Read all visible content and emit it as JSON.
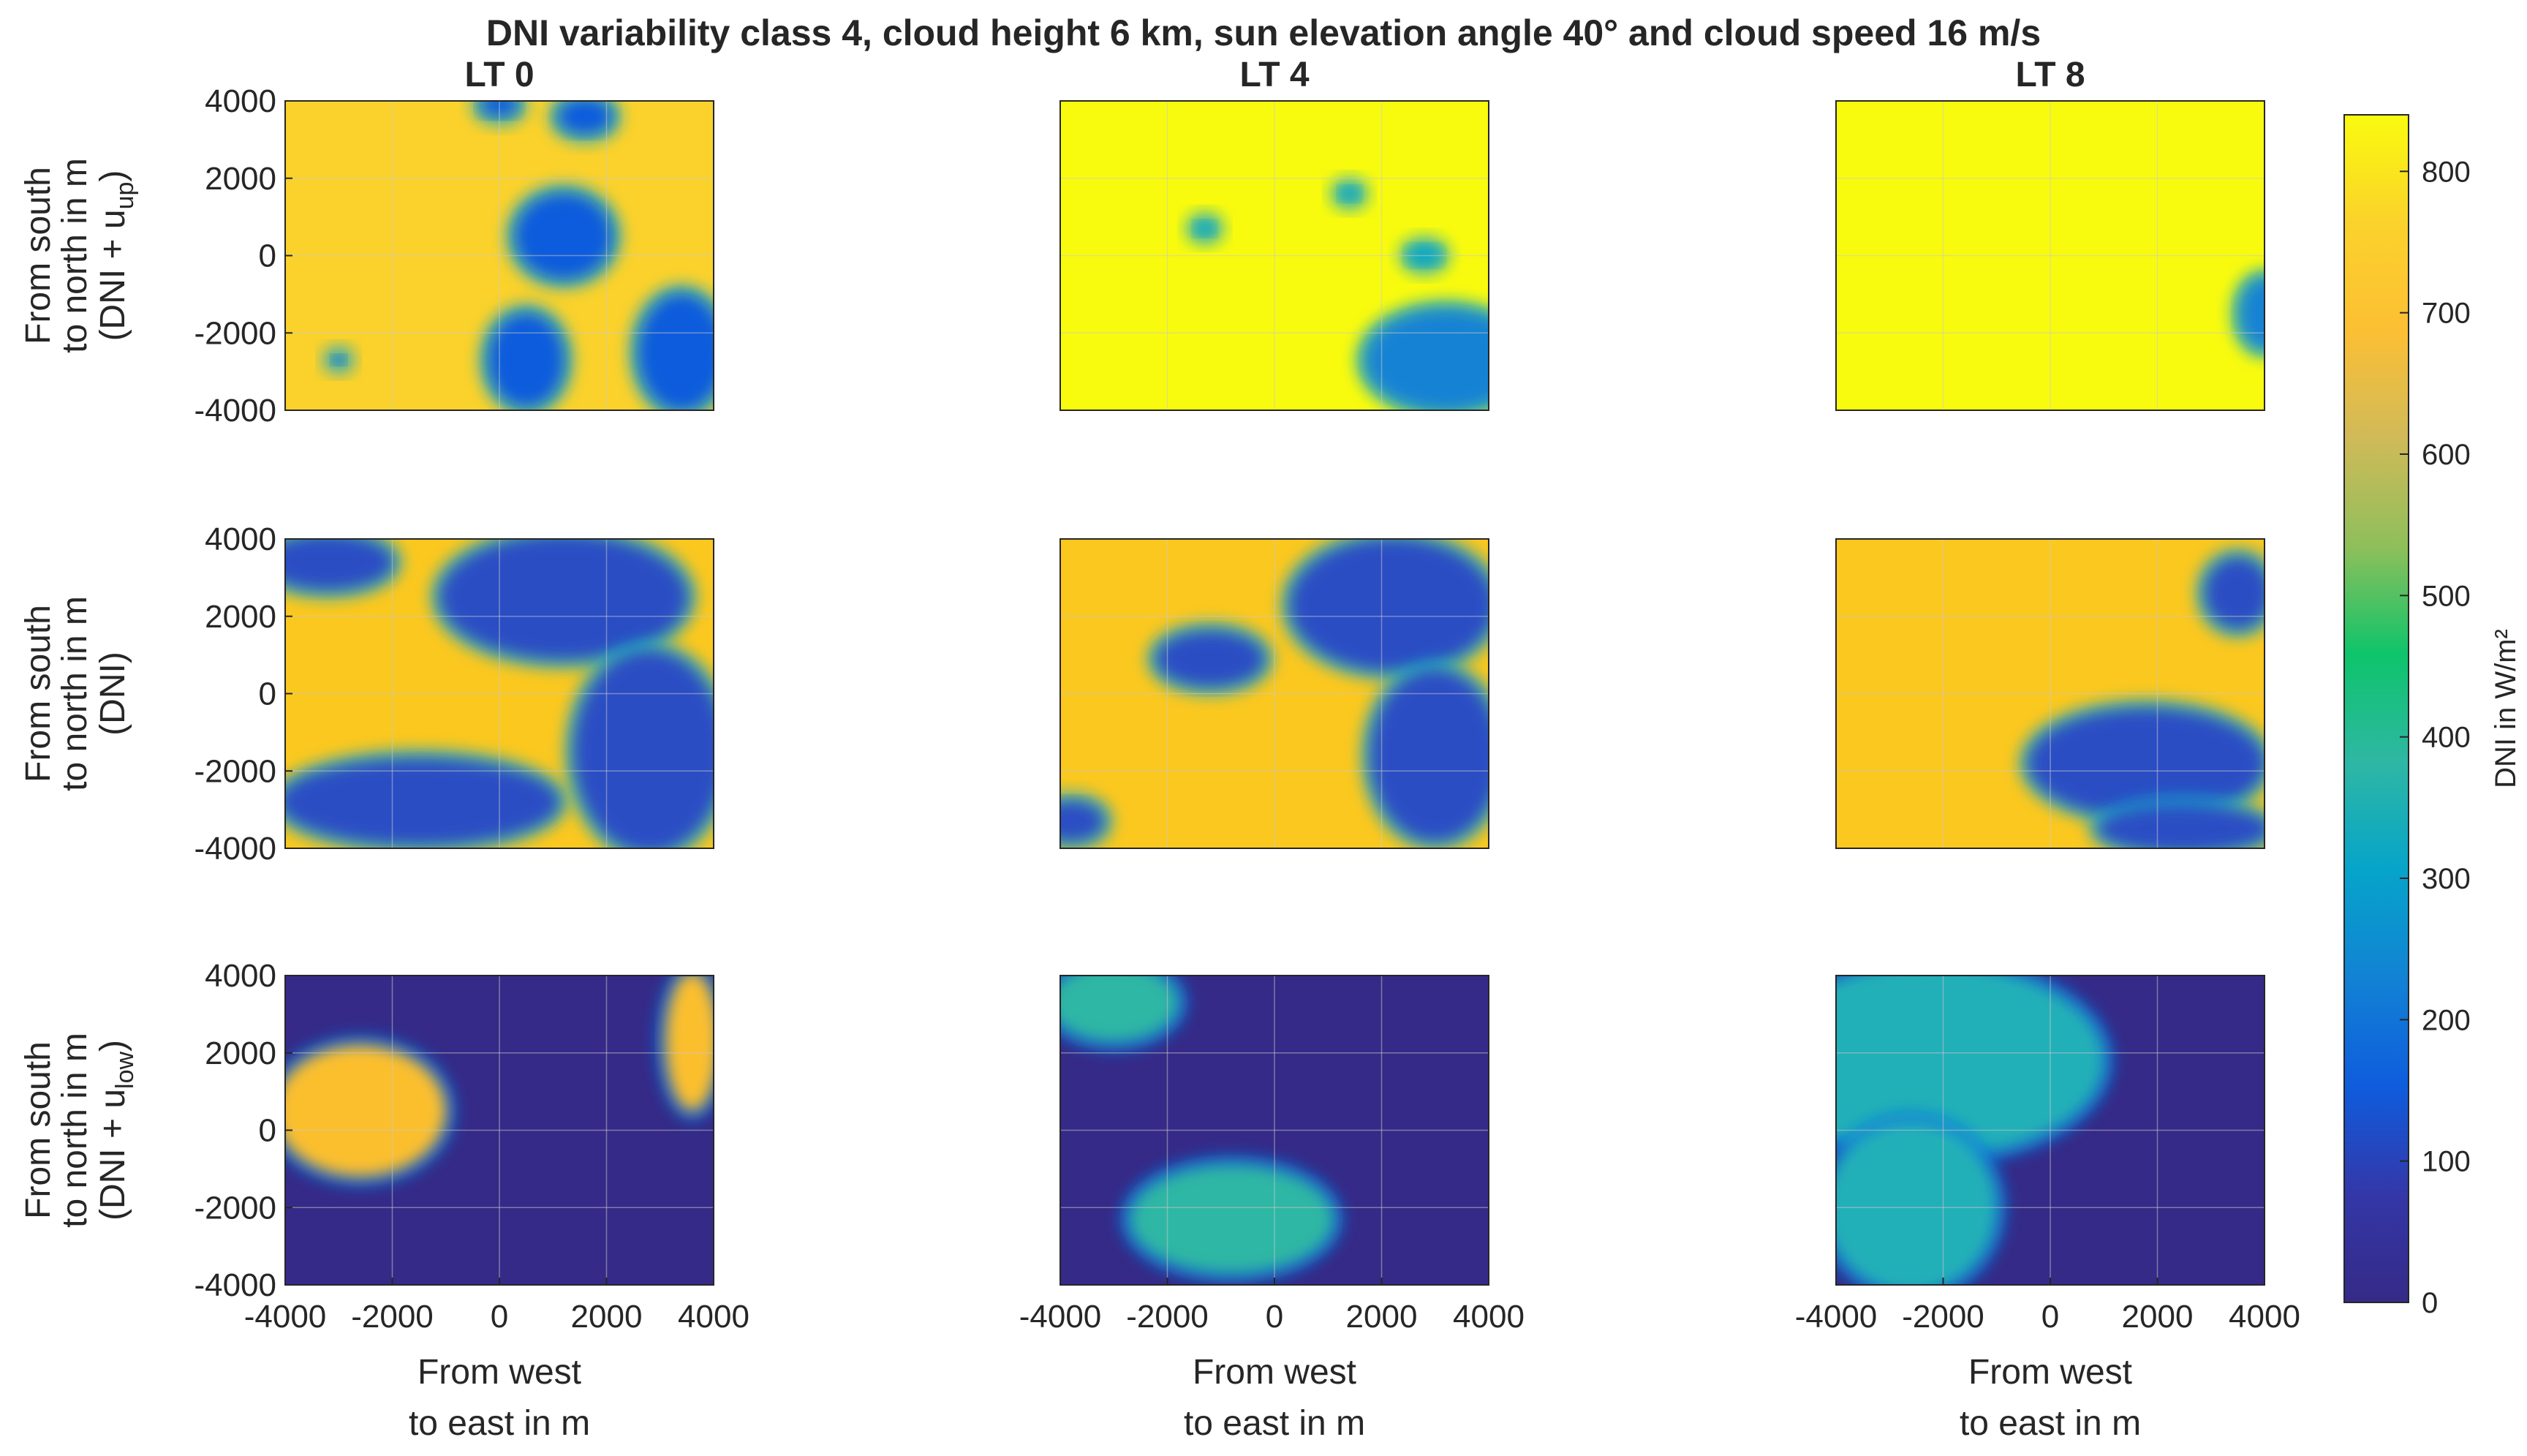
{
  "figure_title": "DNI variability class 4, cloud height 6 km, sun elevation angle 40° and cloud speed 16 m/s",
  "colors": {
    "yellow": "#f7f60f",
    "orange": "#fbc81f",
    "blue": "#2b4dc4",
    "dark_blue": "#352a87",
    "teal": "#17b6a4",
    "bright_blue": "#0f5cdd",
    "axis": "#262626",
    "grid": "#c9c9c9"
  },
  "colorbar_stops": [
    "#352a87",
    "#3437a8",
    "#0f5cdd",
    "#1282d4",
    "#06a4ca",
    "#2eb7a4",
    "#0ec46b",
    "#8ebf5a",
    "#d0ba59",
    "#fcbf34",
    "#fbd22b",
    "#f9fb0e"
  ],
  "chart_data": {
    "type": "heatmap",
    "grid_rows": 3,
    "grid_cols": 3,
    "column_titles": [
      "LT 0",
      "LT 4",
      "LT 8"
    ],
    "row_ylabels": [
      [
        "From south",
        "to north in m",
        "(DNI + u",
        "up",
        ")"
      ],
      [
        "From south",
        "to north in m",
        "(DNI)",
        "",
        ""
      ],
      [
        "From south",
        "to north in m",
        "(DNI + u",
        "low",
        ")"
      ]
    ],
    "xlabel": [
      "From west",
      "to east in m"
    ],
    "x_ticks": [
      "-4000",
      "-2000",
      "0",
      "2000",
      "4000"
    ],
    "y_ticks": [
      "4000",
      "2000",
      "0",
      "-2000",
      "-4000"
    ],
    "xlim": [
      -4000,
      4000
    ],
    "ylim": [
      -4000,
      4000
    ],
    "colorbar": {
      "label": "DNI in W/m²",
      "min": 0,
      "max": 840,
      "ticks": [
        "800",
        "700",
        "600",
        "500",
        "400",
        "300",
        "200",
        "100",
        "0"
      ]
    },
    "panels": [
      {
        "row": 0,
        "col": 0,
        "base": "#fbd22b",
        "blobs": [
          {
            "x": 0,
            "y": 3900,
            "rx": 350,
            "ry": 300,
            "fill": "#0f5cdd"
          },
          {
            "x": 1600,
            "y": 3600,
            "rx": 500,
            "ry": 450,
            "fill": "#0f5cdd"
          },
          {
            "x": 1200,
            "y": 500,
            "rx": 900,
            "ry": 1100,
            "fill": "#0f5cdd"
          },
          {
            "x": 500,
            "y": -2700,
            "rx": 700,
            "ry": 1200,
            "fill": "#0f5cdd"
          },
          {
            "x": 3400,
            "y": -2500,
            "rx": 800,
            "ry": 1500,
            "fill": "#0f5cdd"
          },
          {
            "x": -3000,
            "y": -2700,
            "rx": 120,
            "ry": 120,
            "fill": "#0f5cdd"
          }
        ]
      },
      {
        "row": 0,
        "col": 1,
        "base": "#f9fb0e",
        "blobs": [
          {
            "x": -1300,
            "y": 700,
            "rx": 180,
            "ry": 180,
            "fill": "#06a4ca"
          },
          {
            "x": 1400,
            "y": 1600,
            "rx": 180,
            "ry": 180,
            "fill": "#06a4ca"
          },
          {
            "x": 2800,
            "y": 0,
            "rx": 300,
            "ry": 250,
            "fill": "#06a4ca"
          },
          {
            "x": 3200,
            "y": -2700,
            "rx": 1500,
            "ry": 1300,
            "fill": "#1282d4"
          }
        ]
      },
      {
        "row": 0,
        "col": 2,
        "base": "#f9fb0e",
        "blobs": [
          {
            "x": 4000,
            "y": -1500,
            "rx": 450,
            "ry": 900,
            "fill": "#1282d4"
          }
        ]
      },
      {
        "row": 1,
        "col": 0,
        "base": "#fbc81f",
        "blobs": [
          {
            "x": -3200,
            "y": 3400,
            "rx": 1200,
            "ry": 700,
            "fill": "#2b4dc4"
          },
          {
            "x": 1200,
            "y": 2500,
            "rx": 2300,
            "ry": 1600,
            "fill": "#2b4dc4"
          },
          {
            "x": 2800,
            "y": -1500,
            "rx": 1400,
            "ry": 2600,
            "fill": "#2b4dc4"
          },
          {
            "x": -1500,
            "y": -2800,
            "rx": 2600,
            "ry": 1100,
            "fill": "#2b4dc4"
          }
        ]
      },
      {
        "row": 1,
        "col": 1,
        "base": "#fbc81f",
        "blobs": [
          {
            "x": 2200,
            "y": 2300,
            "rx": 1900,
            "ry": 1700,
            "fill": "#2b4dc4"
          },
          {
            "x": 3000,
            "y": -1600,
            "rx": 1200,
            "ry": 2200,
            "fill": "#2b4dc4"
          },
          {
            "x": -1200,
            "y": 900,
            "rx": 1000,
            "ry": 700,
            "fill": "#2b4dc4"
          },
          {
            "x": -3800,
            "y": -3300,
            "rx": 600,
            "ry": 500,
            "fill": "#2b4dc4"
          }
        ]
      },
      {
        "row": 1,
        "col": 2,
        "base": "#fbc81f",
        "blobs": [
          {
            "x": 1800,
            "y": -1800,
            "rx": 2200,
            "ry": 1400,
            "fill": "#2b4dc4"
          },
          {
            "x": 3500,
            "y": 2600,
            "rx": 600,
            "ry": 900,
            "fill": "#2b4dc4"
          },
          {
            "x": 2500,
            "y": -3500,
            "rx": 1600,
            "ry": 600,
            "fill": "#2b4dc4"
          }
        ]
      },
      {
        "row": 2,
        "col": 0,
        "base": "#352a87",
        "blobs": [
          {
            "x": -2600,
            "y": 500,
            "rx": 1600,
            "ry": 1700,
            "fill": "#fbbf2e"
          },
          {
            "x": 3600,
            "y": 2300,
            "rx": 500,
            "ry": 1800,
            "fill": "#fbbf2e"
          }
        ]
      },
      {
        "row": 2,
        "col": 1,
        "base": "#352a87",
        "blobs": [
          {
            "x": -3000,
            "y": 3300,
            "rx": 1200,
            "ry": 1000,
            "fill": "#2eb7a4"
          },
          {
            "x": -800,
            "y": -2300,
            "rx": 1900,
            "ry": 1400,
            "fill": "#2eb7a4"
          }
        ]
      },
      {
        "row": 2,
        "col": 2,
        "base": "#352a87",
        "blobs": [
          {
            "x": -2200,
            "y": 1800,
            "rx": 3200,
            "ry": 2500,
            "fill": "#21b0b8"
          },
          {
            "x": -2600,
            "y": -2000,
            "rx": 1600,
            "ry": 2200,
            "fill": "#21b0b8"
          }
        ]
      }
    ]
  }
}
